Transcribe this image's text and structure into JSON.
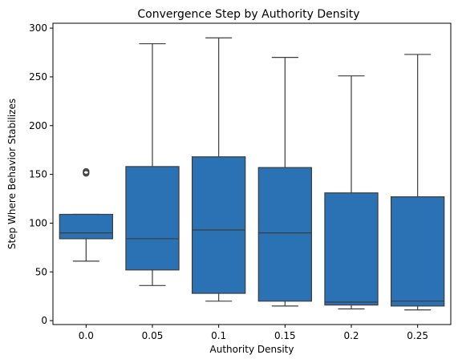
{
  "chart_data": {
    "type": "box",
    "title": "Convergence Step by Authority Density",
    "xlabel": "Authority Density",
    "ylabel": "Step Where Behavior Stabilizes",
    "categories": [
      "0.0",
      "0.05",
      "0.1",
      "0.15",
      "0.2",
      "0.25"
    ],
    "ylim": [
      -4,
      305
    ],
    "yticks": [
      0,
      50,
      100,
      150,
      200,
      250,
      300
    ],
    "grid": false,
    "legend": "none",
    "boxes": [
      {
        "whisker_low": 61,
        "q1": 84,
        "median": 90,
        "q3": 109,
        "whisker_high": 109,
        "outliers": [
          151,
          152,
          153
        ]
      },
      {
        "whisker_low": 36,
        "q1": 52,
        "median": 84,
        "q3": 158,
        "whisker_high": 284,
        "outliers": []
      },
      {
        "whisker_low": 20,
        "q1": 28,
        "median": 93,
        "q3": 168,
        "whisker_high": 290,
        "outliers": []
      },
      {
        "whisker_low": 15,
        "q1": 20,
        "median": 90,
        "q3": 157,
        "whisker_high": 270,
        "outliers": []
      },
      {
        "whisker_low": 12,
        "q1": 16,
        "median": 19,
        "q3": 131,
        "whisker_high": 251,
        "outliers": []
      },
      {
        "whisker_low": 11,
        "q1": 15,
        "median": 20,
        "q3": 127,
        "whisker_high": 273,
        "outliers": []
      }
    ],
    "colors": {
      "box_fill": "#2a72b3",
      "line": "#3d3d3d",
      "axis": "#000000"
    }
  }
}
